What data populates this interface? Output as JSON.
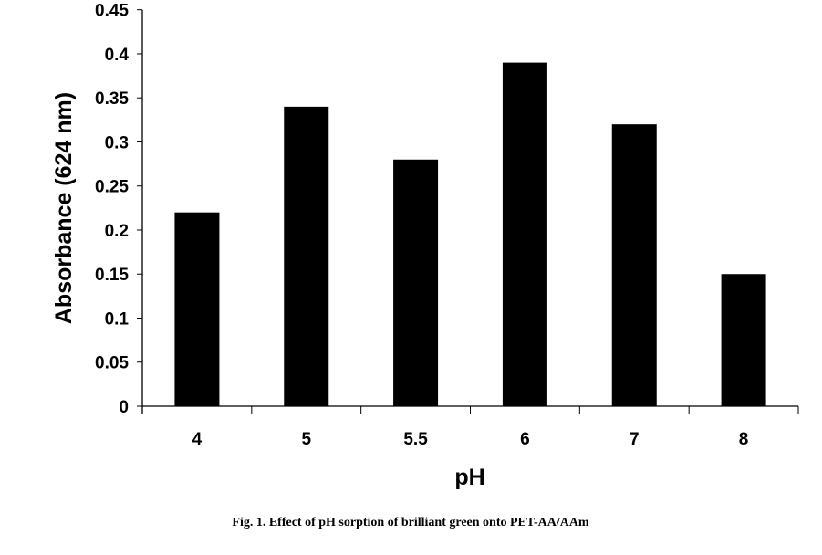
{
  "chart_data": {
    "type": "bar",
    "title": "",
    "caption": "Fig. 1. Effect of pH sorption of brilliant green onto PET-AA/AAm",
    "xlabel": "pH",
    "ylabel": "Absorbance (624 nm)",
    "categories": [
      "4",
      "5",
      "5.5",
      "6",
      "7",
      "8"
    ],
    "values": [
      0.22,
      0.34,
      0.28,
      0.39,
      0.32,
      0.15
    ],
    "ylim": [
      0,
      0.45
    ],
    "yticks": [
      "0",
      "0.05",
      "0.1",
      "0.15",
      "0.2",
      "0.25",
      "0.3",
      "0.35",
      "0.4",
      "0.45"
    ],
    "grid": false,
    "legend": "none",
    "bar_color": "#000000"
  }
}
